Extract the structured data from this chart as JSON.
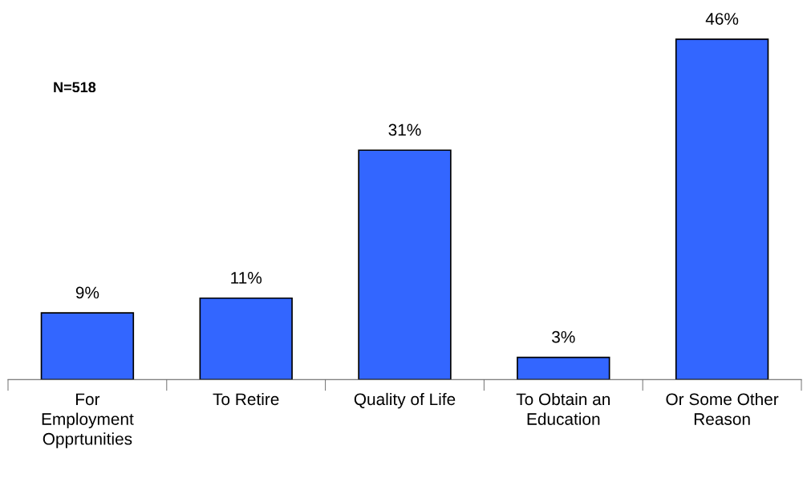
{
  "chart_data": {
    "type": "bar",
    "categories": [
      "For\nEmployment\nOpprtunities",
      "To Retire",
      "Quality of Life",
      "To Obtain an\nEducation",
      "Or Some Other\nReason"
    ],
    "values": [
      9,
      11,
      31,
      3,
      46
    ],
    "color": "#3366ff",
    "value_labels": [
      "9%",
      "11%",
      "31%",
      "3%",
      "46%"
    ],
    "annotations": [
      "N=518"
    ],
    "grid": false,
    "legend": false
  }
}
